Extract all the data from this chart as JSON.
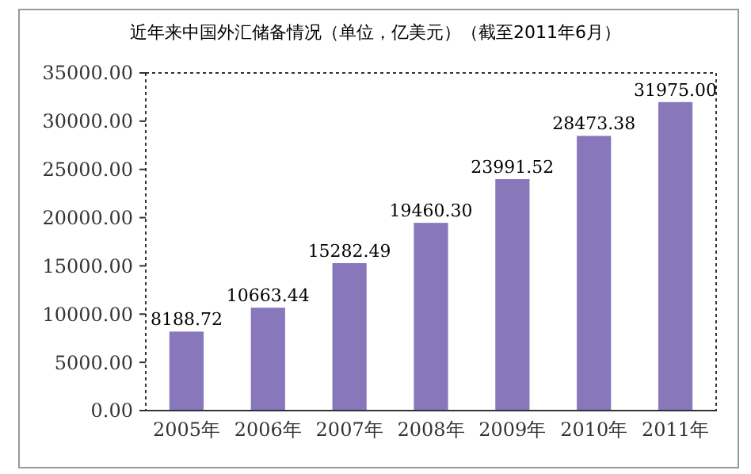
{
  "chart_data": {
    "type": "bar",
    "title": "近年来中国外汇储备情况（单位，亿美元）（截至2011年6月）",
    "categories": [
      "2005年",
      "2006年",
      "2007年",
      "2008年",
      "2009年",
      "2010年",
      "2011年"
    ],
    "values": [
      8188.72,
      10663.44,
      15282.49,
      19460.3,
      23991.52,
      28473.38,
      31975.0
    ],
    "value_labels": [
      "8188.72",
      "10663.44",
      "15282.49",
      "19460.30",
      "23991.52",
      "28473.38",
      "31975.00"
    ],
    "color": "#8877bb",
    "ylim": [
      0,
      35000
    ],
    "yticks": [
      {
        "value": 0,
        "label": "0.00"
      },
      {
        "value": 5000,
        "label": "5000.00"
      },
      {
        "value": 10000,
        "label": "10000.00"
      },
      {
        "value": 15000,
        "label": "15000.00"
      },
      {
        "value": 20000,
        "label": "20000.00"
      },
      {
        "value": 25000,
        "label": "25000.00"
      },
      {
        "value": 30000,
        "label": "30000.00"
      },
      {
        "value": 35000,
        "label": "35000.00"
      }
    ],
    "grid": false
  }
}
